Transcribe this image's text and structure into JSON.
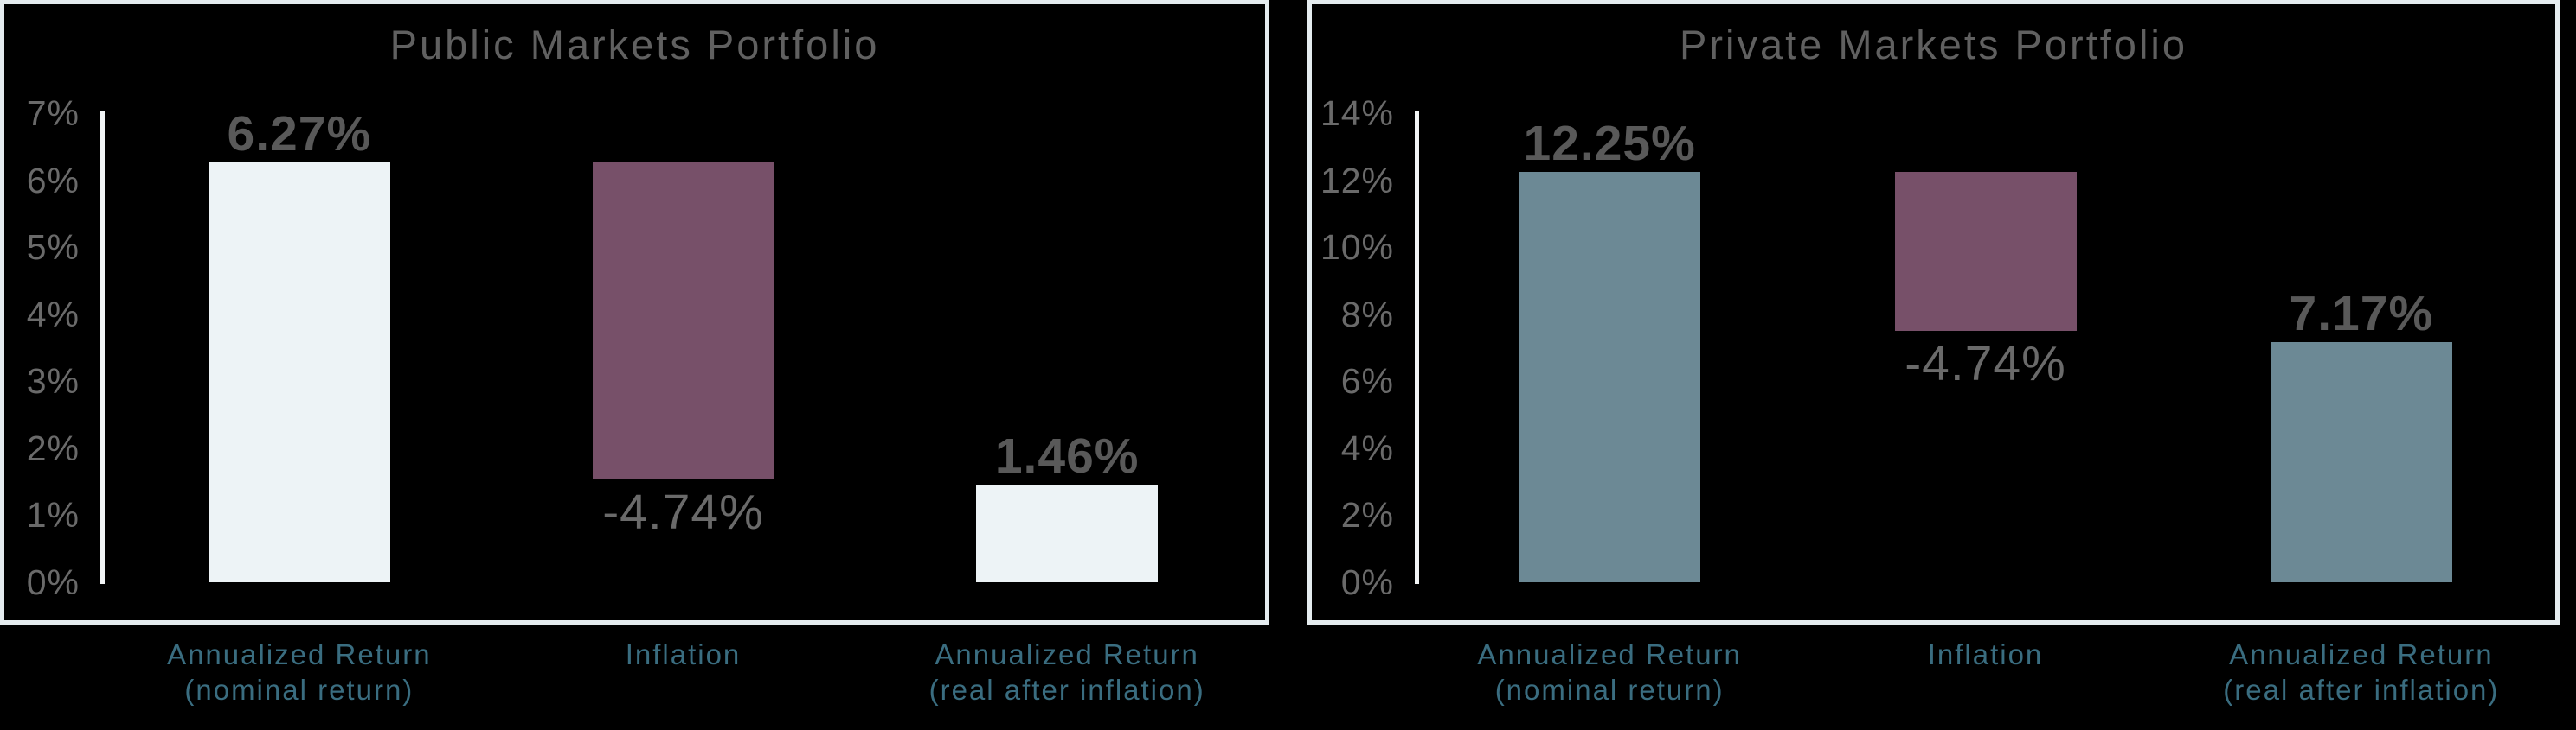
{
  "chart_data": [
    {
      "type": "bar",
      "title": "Public Markets Portfolio",
      "categories": [
        [
          "Annualized Return",
          "(nominal return)"
        ],
        [
          "Inflation"
        ],
        [
          "Annualized Return",
          "(real after inflation)"
        ]
      ],
      "values": [
        6.27,
        -4.74,
        1.46
      ],
      "bars": [
        {
          "name": "annualized-return-nominal",
          "from": 0,
          "to": 6.27,
          "value_label": "6.27%",
          "label_pos": "above",
          "bold": true,
          "color": "#edf3f6"
        },
        {
          "name": "inflation",
          "from": 1.53,
          "to": 6.27,
          "value_label": "-4.74%",
          "label_pos": "below",
          "bold": false,
          "color": "#775069"
        },
        {
          "name": "annualized-return-real",
          "from": 0,
          "to": 1.46,
          "value_label": "1.46%",
          "label_pos": "above",
          "bold": true,
          "color": "#edf3f6"
        }
      ],
      "ylim": [
        0,
        7
      ],
      "yticks": [
        "7%",
        "6%",
        "5%",
        "4%",
        "3%",
        "2%",
        "1%",
        "0%"
      ],
      "grid": false,
      "legend": false,
      "colors": {
        "positive_bar": "#edf3f6",
        "inflation_bar": "#775069",
        "tick_text": "#6a6a6a",
        "category_text": "#3a6d80",
        "frame": "#e5ecef"
      }
    },
    {
      "type": "bar",
      "title": "Private Markets Portfolio",
      "categories": [
        [
          "Annualized Return",
          "(nominal return)"
        ],
        [
          "Inflation"
        ],
        [
          "Annualized Return",
          "(real after inflation)"
        ]
      ],
      "values": [
        12.25,
        -4.74,
        7.17
      ],
      "bars": [
        {
          "name": "annualized-return-nominal",
          "from": 0,
          "to": 12.25,
          "value_label": "12.25%",
          "label_pos": "above",
          "bold": true,
          "color": "#6c8995"
        },
        {
          "name": "inflation",
          "from": 7.51,
          "to": 12.25,
          "value_label": "-4.74%",
          "label_pos": "below",
          "bold": false,
          "color": "#775069"
        },
        {
          "name": "annualized-return-real",
          "from": 0,
          "to": 7.17,
          "value_label": "7.17%",
          "label_pos": "above",
          "bold": true,
          "color": "#6c8995"
        }
      ],
      "ylim": [
        0,
        14
      ],
      "yticks": [
        "14%",
        "12%",
        "10%",
        "8%",
        "6%",
        "4%",
        "2%",
        "0%"
      ],
      "grid": false,
      "legend": false,
      "colors": {
        "positive_bar": "#6c8995",
        "inflation_bar": "#775069",
        "tick_text": "#6a6a6a",
        "category_text": "#3a6d80",
        "frame": "#e5ecef"
      }
    }
  ]
}
